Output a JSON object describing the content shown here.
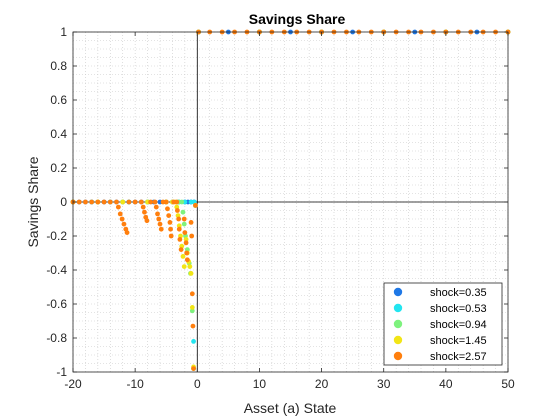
{
  "chart_data": {
    "type": "scatter",
    "title": "Savings Share",
    "xlabel": "Asset (a) State",
    "ylabel": "Savings Share",
    "xlim": [
      -20,
      50
    ],
    "ylim": [
      -1,
      1
    ],
    "xticks": [
      -20,
      -10,
      0,
      10,
      20,
      30,
      40,
      50
    ],
    "xtick_labels": [
      "-20",
      "-10",
      "0",
      "10",
      "20",
      "30",
      "40",
      "50"
    ],
    "yticks": [
      -1,
      -0.8,
      -0.6,
      -0.4,
      -0.2,
      0,
      0.2,
      0.4,
      0.6,
      0.8,
      1
    ],
    "ytick_labels": [
      "-1",
      "-0.8",
      "-0.6",
      "-0.4",
      "-0.2",
      "0",
      "0.2",
      "0.4",
      "0.6",
      "0.8",
      "1"
    ],
    "grid": "minor-dotted",
    "legend_position": "bottom-right",
    "series": [
      {
        "name": "shock=0.35",
        "color": "#1f78e6",
        "points": [
          [
            -20,
            0
          ],
          [
            -19,
            0
          ],
          [
            -18,
            0
          ],
          [
            -17,
            0
          ],
          [
            -16,
            0
          ],
          [
            -15,
            0
          ],
          [
            -14,
            0
          ],
          [
            -13,
            0
          ],
          [
            -12,
            0
          ],
          [
            -11,
            0
          ],
          [
            -10,
            0
          ],
          [
            -9,
            0
          ],
          [
            -8,
            0
          ],
          [
            -7,
            0
          ],
          [
            -6,
            0
          ],
          [
            -5,
            0
          ],
          [
            -4,
            0
          ],
          [
            -3,
            0
          ],
          [
            -2,
            0
          ],
          [
            -1.5,
            0
          ],
          [
            -1,
            0
          ],
          [
            -0.5,
            0
          ],
          [
            -0.3,
            -0.02
          ],
          [
            0.2,
            1
          ],
          [
            5,
            1
          ],
          [
            10,
            1
          ],
          [
            15,
            1
          ],
          [
            20,
            1
          ],
          [
            25,
            1
          ],
          [
            30,
            1
          ],
          [
            35,
            1
          ],
          [
            40,
            1
          ],
          [
            45,
            1
          ],
          [
            50,
            1
          ]
        ]
      },
      {
        "name": "shock=0.53",
        "color": "#22e5f0",
        "points": [
          [
            -20,
            0
          ],
          [
            -17,
            0
          ],
          [
            -14,
            0
          ],
          [
            -11,
            0
          ],
          [
            -8,
            0
          ],
          [
            -5,
            0
          ],
          [
            -3,
            0
          ],
          [
            -2,
            0
          ],
          [
            -1,
            0
          ],
          [
            -0.5,
            0
          ],
          [
            -0.6,
            -0.82
          ],
          [
            -0.3,
            -0.02
          ],
          [
            0.2,
            1
          ],
          [
            10,
            1
          ],
          [
            20,
            1
          ],
          [
            30,
            1
          ],
          [
            40,
            1
          ],
          [
            50,
            1
          ]
        ]
      },
      {
        "name": "shock=0.94",
        "color": "#7ef27e",
        "points": [
          [
            -20,
            0
          ],
          [
            -16,
            0
          ],
          [
            -12,
            0
          ],
          [
            -8,
            0
          ],
          [
            -5,
            0
          ],
          [
            -3,
            0
          ],
          [
            -2.5,
            0
          ],
          [
            -2.3,
            -0.06
          ],
          [
            -2.1,
            -0.13
          ],
          [
            -1.9,
            -0.2
          ],
          [
            -1.6,
            -0.28
          ],
          [
            -1.3,
            -0.36
          ],
          [
            -1.1,
            -0.42
          ],
          [
            -0.8,
            -0.64
          ],
          [
            -0.6,
            -0.98
          ],
          [
            -0.3,
            -0.02
          ],
          [
            0.2,
            1
          ],
          [
            10,
            1
          ],
          [
            20,
            1
          ],
          [
            30,
            1
          ],
          [
            40,
            1
          ],
          [
            50,
            1
          ]
        ]
      },
      {
        "name": "shock=1.45",
        "color": "#f2e516",
        "points": [
          [
            -20,
            0
          ],
          [
            -16,
            0
          ],
          [
            -12,
            0
          ],
          [
            -8,
            0
          ],
          [
            -5,
            0
          ],
          [
            -4,
            0
          ],
          [
            -3.5,
            0
          ],
          [
            -3.3,
            -0.03
          ],
          [
            -3.1,
            -0.08
          ],
          [
            -2.9,
            -0.14
          ],
          [
            -2.7,
            -0.2
          ],
          [
            -2.5,
            -0.26
          ],
          [
            -2.3,
            -0.32
          ],
          [
            -2.1,
            -0.38
          ],
          [
            -1.8,
            -0.22
          ],
          [
            -1.6,
            -0.3
          ],
          [
            -1.4,
            -0.35
          ],
          [
            -1.2,
            -0.38
          ],
          [
            -1.0,
            -0.42
          ],
          [
            -0.8,
            -0.62
          ],
          [
            -0.6,
            -0.97
          ],
          [
            -0.3,
            -0.02
          ],
          [
            0.2,
            1
          ],
          [
            10,
            1
          ],
          [
            20,
            1
          ],
          [
            30,
            1
          ],
          [
            40,
            1
          ],
          [
            50,
            1
          ]
        ]
      },
      {
        "name": "shock=2.57",
        "color": "#ff7f0e",
        "points": [
          [
            -20,
            0
          ],
          [
            -19,
            0
          ],
          [
            -18,
            0
          ],
          [
            -17,
            0
          ],
          [
            -16,
            0
          ],
          [
            -15,
            0
          ],
          [
            -14,
            0
          ],
          [
            -13,
            0
          ],
          [
            -12.7,
            -0.03
          ],
          [
            -12.4,
            -0.07
          ],
          [
            -12.1,
            -0.1
          ],
          [
            -11.8,
            -0.13
          ],
          [
            -11.5,
            -0.16
          ],
          [
            -11.3,
            -0.18
          ],
          [
            -11,
            0
          ],
          [
            -10,
            0
          ],
          [
            -9,
            0
          ],
          [
            -8.7,
            -0.03
          ],
          [
            -8.5,
            -0.06
          ],
          [
            -8.3,
            -0.09
          ],
          [
            -8.1,
            -0.11
          ],
          [
            -7.5,
            0
          ],
          [
            -6.8,
            0
          ],
          [
            -6.6,
            -0.03
          ],
          [
            -6.4,
            -0.07
          ],
          [
            -6.2,
            -0.1
          ],
          [
            -6.0,
            -0.13
          ],
          [
            -5.8,
            -0.16
          ],
          [
            -5.5,
            0
          ],
          [
            -5.0,
            0
          ],
          [
            -4.8,
            -0.04
          ],
          [
            -4.6,
            -0.08
          ],
          [
            -4.4,
            -0.12
          ],
          [
            -4.3,
            -0.16
          ],
          [
            -4.2,
            -0.2
          ],
          [
            -3.8,
            0
          ],
          [
            -3.3,
            0
          ],
          [
            -3.2,
            -0.05
          ],
          [
            -3.0,
            -0.1
          ],
          [
            -2.9,
            -0.16
          ],
          [
            -2.8,
            -0.22
          ],
          [
            -2.6,
            -0.28
          ],
          [
            -2.1,
            -0.1
          ],
          [
            -2.0,
            -0.18
          ],
          [
            -1.8,
            -0.24
          ],
          [
            -1.7,
            -0.3
          ],
          [
            -1.6,
            -0.34
          ],
          [
            -1.0,
            -0.12
          ],
          [
            -0.9,
            -0.2
          ],
          [
            -0.8,
            -0.54
          ],
          [
            -0.7,
            -0.73
          ],
          [
            -0.6,
            -0.98
          ],
          [
            -0.3,
            -0.02
          ],
          [
            0.2,
            1
          ],
          [
            2,
            1
          ],
          [
            4,
            1
          ],
          [
            6,
            1
          ],
          [
            8,
            1
          ],
          [
            10,
            1
          ],
          [
            12,
            1
          ],
          [
            14,
            1
          ],
          [
            16,
            1
          ],
          [
            18,
            1
          ],
          [
            20,
            1
          ],
          [
            22,
            1
          ],
          [
            24,
            1
          ],
          [
            26,
            1
          ],
          [
            28,
            1
          ],
          [
            30,
            1
          ],
          [
            32,
            1
          ],
          [
            34,
            1
          ],
          [
            36,
            1
          ],
          [
            38,
            1
          ],
          [
            40,
            1
          ],
          [
            42,
            1
          ],
          [
            44,
            1
          ],
          [
            46,
            1
          ],
          [
            48,
            1
          ],
          [
            50,
            1
          ]
        ]
      }
    ]
  }
}
